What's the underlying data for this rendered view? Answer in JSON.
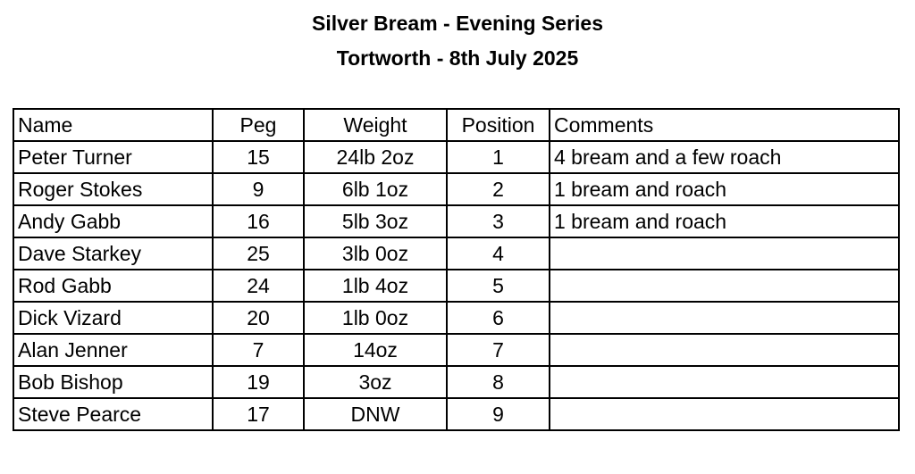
{
  "title": "Silver Bream - Evening Series",
  "subtitle": "Tortworth - 8th July 2025",
  "table": {
    "headers": [
      "Name",
      "Peg",
      "Weight",
      "Position",
      "Comments"
    ],
    "rows": [
      [
        "Peter Turner",
        "15",
        "24lb 2oz",
        "1",
        "4 bream and a few roach"
      ],
      [
        "Roger Stokes",
        "9",
        "6lb 1oz",
        "2",
        "1 bream and roach"
      ],
      [
        "Andy Gabb",
        "16",
        "5lb 3oz",
        "3",
        "1 bream and roach"
      ],
      [
        "Dave Starkey",
        "25",
        "3lb 0oz",
        "4",
        ""
      ],
      [
        "Rod Gabb",
        "24",
        "1lb 4oz",
        "5",
        ""
      ],
      [
        "Dick Vizard",
        "20",
        "1lb 0oz",
        "6",
        ""
      ],
      [
        "Alan Jenner",
        "7",
        "14oz",
        "7",
        ""
      ],
      [
        "Bob Bishop",
        "19",
        "3oz",
        "8",
        ""
      ],
      [
        "Steve Pearce",
        "17",
        "DNW",
        "9",
        ""
      ]
    ]
  }
}
